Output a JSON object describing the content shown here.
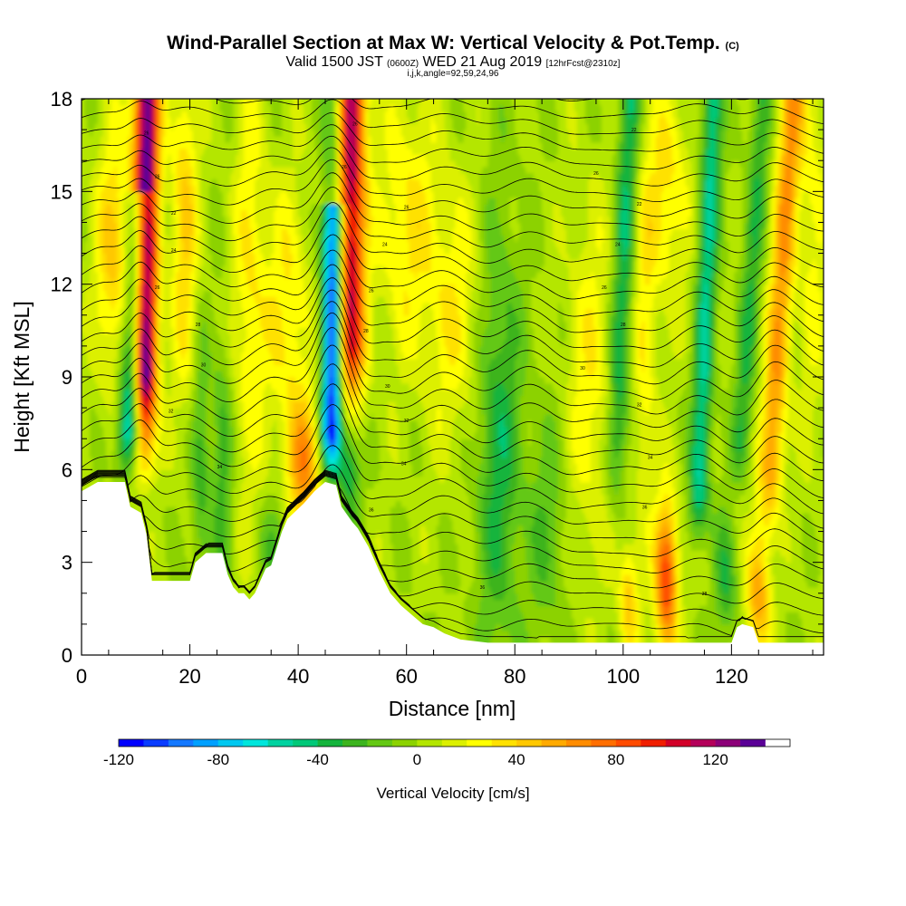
{
  "title": {
    "main": "Wind-Parallel Section at Max W: Vertical Velocity & Pot.Temp.",
    "main_suffix": "(C)",
    "valid_prefix": "Valid 1500 JST",
    "valid_utc": "(0600Z)",
    "valid_date": "WED 21 Aug 2019",
    "forecast": "[12hrFcst@2310z]",
    "indices": "i,j,k,angle=92,59,24,96"
  },
  "chart_data": {
    "type": "heatmap",
    "xlabel": "Distance [nm]",
    "ylabel": "Height [Kft MSL]",
    "xlim": [
      0,
      137
    ],
    "ylim": [
      0,
      18
    ],
    "x_ticks": [
      "0",
      "20",
      "40",
      "60",
      "80",
      "100",
      "120"
    ],
    "y_ticks": [
      "0",
      "3",
      "6",
      "9",
      "12",
      "15",
      "18"
    ],
    "colorbar": {
      "label": "Vertical Velocity [cm/s]",
      "range": [
        -120,
        150
      ],
      "step": 10,
      "ticks": [
        "-120",
        "-80",
        "-40",
        "0",
        "40",
        "80",
        "120"
      ],
      "colors": [
        "#0000ff",
        "#0a3cff",
        "#1478ff",
        "#00a0ff",
        "#00c8f0",
        "#00e6dc",
        "#00d2a0",
        "#00c878",
        "#14b43c",
        "#3cb41e",
        "#64c814",
        "#8cd200",
        "#b4e600",
        "#dcf000",
        "#ffff00",
        "#ffe100",
        "#ffc800",
        "#ffaa00",
        "#ff8c00",
        "#ff6e00",
        "#ff4b00",
        "#f01e00",
        "#d20028",
        "#b4005a",
        "#8c0078",
        "#5a0096"
      ]
    },
    "terrain_kft": [
      [
        0,
        5.3
      ],
      [
        3,
        5.6
      ],
      [
        8,
        5.6
      ],
      [
        9,
        4.8
      ],
      [
        11,
        4.6
      ],
      [
        12,
        3.9
      ],
      [
        13,
        2.4
      ],
      [
        18,
        2.4
      ],
      [
        20,
        2.4
      ],
      [
        21,
        3.0
      ],
      [
        23,
        3.3
      ],
      [
        26,
        3.3
      ],
      [
        27,
        2.6
      ],
      [
        28,
        2.2
      ],
      [
        29,
        2.0
      ],
      [
        30,
        2.0
      ],
      [
        31,
        1.8
      ],
      [
        32,
        2.0
      ],
      [
        33,
        2.4
      ],
      [
        34,
        2.8
      ],
      [
        35,
        2.9
      ],
      [
        37,
        4.0
      ],
      [
        38,
        4.4
      ],
      [
        41,
        4.9
      ],
      [
        43,
        5.3
      ],
      [
        45,
        5.6
      ],
      [
        47,
        5.5
      ],
      [
        48,
        4.8
      ],
      [
        50,
        4.3
      ],
      [
        51,
        4.1
      ],
      [
        53,
        3.5
      ],
      [
        55,
        2.7
      ],
      [
        57,
        2.0
      ],
      [
        59,
        1.6
      ],
      [
        61,
        1.3
      ],
      [
        63,
        1.0
      ],
      [
        65,
        0.9
      ],
      [
        67,
        0.7
      ],
      [
        70,
        0.5
      ],
      [
        75,
        0.4
      ],
      [
        80,
        0.4
      ],
      [
        100,
        0.4
      ],
      [
        112,
        0.4
      ],
      [
        120,
        0.4
      ],
      [
        121,
        0.9
      ],
      [
        122,
        1.0
      ],
      [
        124,
        0.9
      ],
      [
        125,
        0.4
      ],
      [
        137,
        0.4
      ]
    ],
    "theta_contour_labels": [
      {
        "x": 12.0,
        "y": 16.9,
        "value": "26"
      },
      {
        "x": 14.0,
        "y": 15.5,
        "value": "26"
      },
      {
        "x": 17.0,
        "y": 14.3,
        "value": "22"
      },
      {
        "x": 17.0,
        "y": 13.1,
        "value": "24"
      },
      {
        "x": 14.0,
        "y": 11.9,
        "value": "26"
      },
      {
        "x": 21.5,
        "y": 10.7,
        "value": "28"
      },
      {
        "x": 22.5,
        "y": 9.4,
        "value": "30"
      },
      {
        "x": 16.5,
        "y": 7.9,
        "value": "32"
      },
      {
        "x": 25.5,
        "y": 6.1,
        "value": "34"
      },
      {
        "x": 50.5,
        "y": 17.2,
        "value": "26"
      },
      {
        "x": 48.5,
        "y": 15.8,
        "value": "26"
      },
      {
        "x": 60.0,
        "y": 14.5,
        "value": "26"
      },
      {
        "x": 56.0,
        "y": 13.3,
        "value": "24"
      },
      {
        "x": 53.5,
        "y": 11.8,
        "value": "26"
      },
      {
        "x": 52.5,
        "y": 10.5,
        "value": "28"
      },
      {
        "x": 56.5,
        "y": 8.7,
        "value": "30"
      },
      {
        "x": 60.0,
        "y": 7.6,
        "value": "32"
      },
      {
        "x": 59.5,
        "y": 6.2,
        "value": "34"
      },
      {
        "x": 53.5,
        "y": 4.7,
        "value": "36"
      },
      {
        "x": 74.0,
        "y": 2.2,
        "value": "36"
      },
      {
        "x": 102.0,
        "y": 17.0,
        "value": "22"
      },
      {
        "x": 95.0,
        "y": 15.6,
        "value": "26"
      },
      {
        "x": 103.0,
        "y": 14.6,
        "value": "22"
      },
      {
        "x": 99.0,
        "y": 13.3,
        "value": "24"
      },
      {
        "x": 96.5,
        "y": 11.9,
        "value": "26"
      },
      {
        "x": 100.0,
        "y": 10.7,
        "value": "28"
      },
      {
        "x": 92.5,
        "y": 9.3,
        "value": "30"
      },
      {
        "x": 103.0,
        "y": 8.1,
        "value": "32"
      },
      {
        "x": 105.0,
        "y": 6.4,
        "value": "34"
      },
      {
        "x": 104.0,
        "y": 4.8,
        "value": "36"
      },
      {
        "x": 115.0,
        "y": 2.0,
        "value": "38"
      }
    ]
  }
}
